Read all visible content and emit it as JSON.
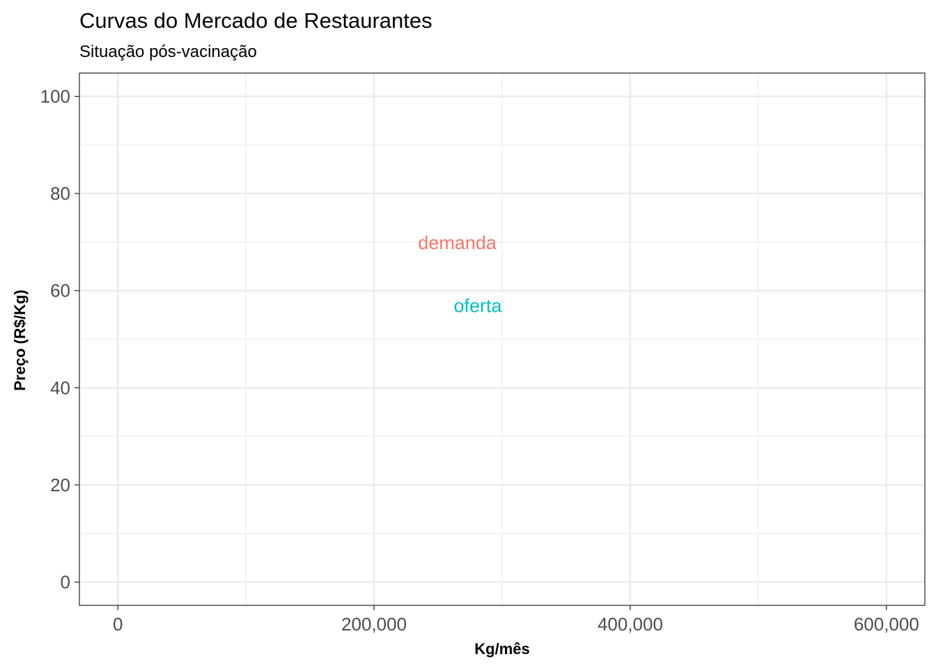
{
  "chart_data": {
    "type": "line",
    "title": "Curvas do Mercado de Restaurantes",
    "subtitle": "Situação pós-vacinação",
    "xlabel": "Kg/mês",
    "ylabel": "Preço (R$/Kg)",
    "xlim": [
      -30000,
      630000
    ],
    "ylim": [
      -4.8,
      104.8
    ],
    "x_ticks": [
      0,
      200000,
      400000,
      600000
    ],
    "x_tick_labels": [
      "0",
      "200,000",
      "400,000",
      "600,000"
    ],
    "x_minor_ticks": [
      100000,
      300000,
      500000
    ],
    "y_ticks": [
      0,
      20,
      40,
      60,
      80,
      100
    ],
    "y_tick_labels": [
      "0",
      "20",
      "40",
      "60",
      "80",
      "100"
    ],
    "y_minor_ticks": [
      10,
      30,
      50,
      70,
      90
    ],
    "grid": true,
    "annotations": [
      {
        "text": "demanda",
        "x": 265000,
        "y": 70,
        "color": "#F8766D"
      },
      {
        "text": "oferta",
        "x": 281000,
        "y": 57,
        "color": "#00BFC4"
      }
    ],
    "series": []
  }
}
